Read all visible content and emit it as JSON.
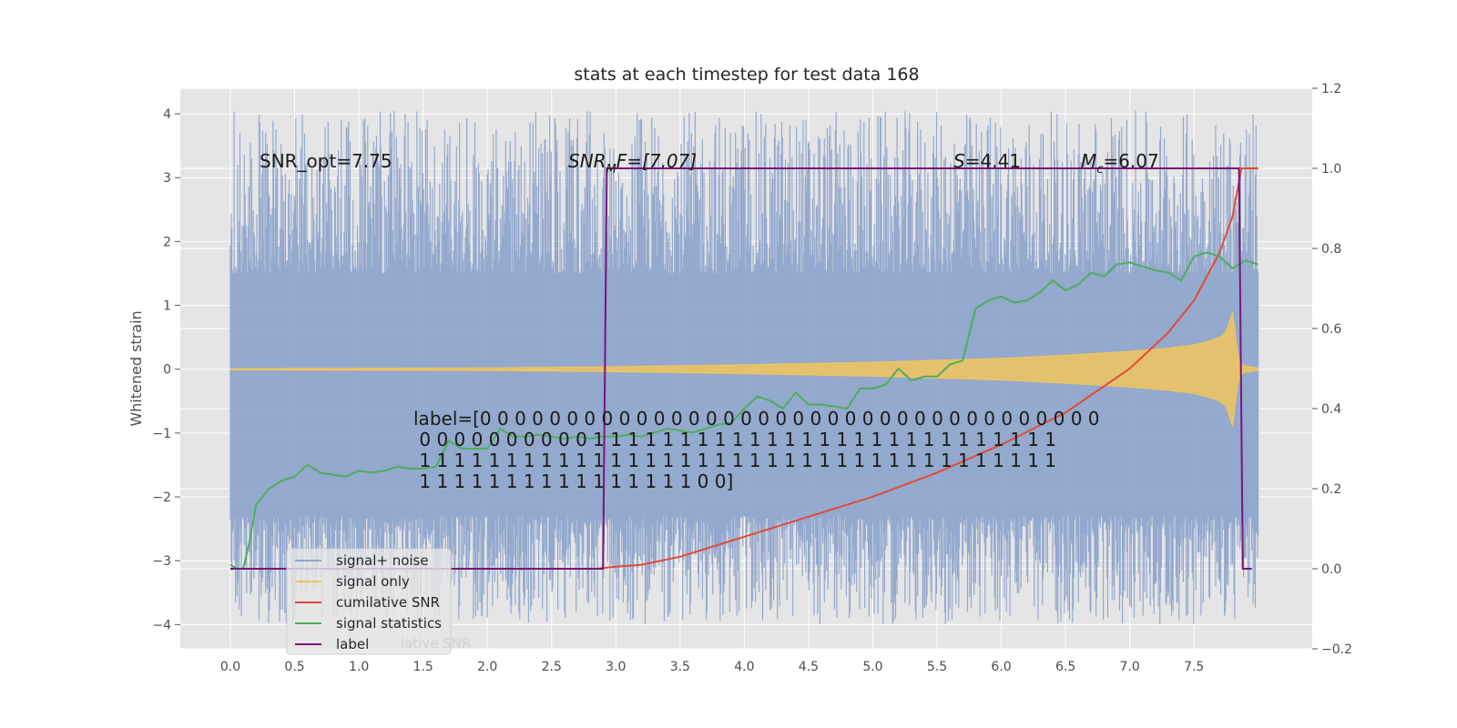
{
  "chart_data": {
    "type": "line",
    "title": "stats at each timestep for test data 168",
    "xlabel": "",
    "ylabel": "Whitened strain",
    "xlim": [
      -0.39,
      8.42
    ],
    "ylim": [
      -4.38,
      4.4
    ],
    "ylim_right": [
      -0.2,
      1.2
    ],
    "x_ticks": [
      "0.0",
      "0.5",
      "1.0",
      "1.5",
      "2.0",
      "2.5",
      "3.0",
      "3.5",
      "4.0",
      "4.5",
      "5.0",
      "5.5",
      "6.0",
      "6.5",
      "7.0",
      "7.5"
    ],
    "y_ticks": [
      "4",
      "3",
      "2",
      "1",
      "0",
      "−1",
      "−2",
      "−3",
      "−4"
    ],
    "y_ticks_right": [
      "1.2",
      "1.0",
      "0.8",
      "0.6",
      "0.4",
      "0.2",
      "0.0",
      "−0.2"
    ],
    "grid": true,
    "legend_position": "lower-left",
    "annotations": {
      "snr_opt": "SNR_opt=7.75",
      "snr_mf_main": "SNR",
      "snr_mf_sub": "M",
      "snr_mf_rest": "F=[7.07]",
      "s_main": "S",
      "s_rest": "=4.41",
      "mc_main": "M",
      "mc_sub": "c",
      "mc_rest": "=6.07",
      "label_lines": [
        "label=[0 0 0 0 0 0 0 0 0 0 0 0 0 0 0 0 0 0 0 0 0 0 0 0 0 0 0 0 0 0 0 0 0 0 0 0",
        " 0 0 0 0 0 0 0 0 0 0 1 1 1 1 1 1 1 1 1 1 1 1 1 1 1 1 1 1 1 1 1 1 1 1 1 1 1",
        " 1 1 1 1 1 1 1 1 1 1 1 1 1 1 1 1 1 1 1 1 1 1 1 1 1 1 1 1 1 1 1 1 1 1 1 1 1",
        " 1 1 1 1 1 1 1 1 1 1 1 1 1 1 1 1 0 0]"
      ],
      "legend_ghost": "lative SNR"
    },
    "noise_band": {
      "min_lo": -2.3,
      "min_hi": 1.5,
      "max_lo": -4.0,
      "max_hi": 4.05,
      "seed": 168
    },
    "series": [
      {
        "name": "signal+ noise",
        "color": "#8fa5cc",
        "axis": "left",
        "kind": "noise"
      },
      {
        "name": "signal only",
        "color": "#f2c55c",
        "axis": "left",
        "kind": "chirp",
        "amplitude": {
          "t": [
            0.0,
            2.0,
            3.0,
            4.0,
            5.0,
            5.5,
            6.0,
            6.5,
            7.0,
            7.3,
            7.5,
            7.6,
            7.7,
            7.75,
            7.8,
            7.85,
            7.9,
            8.0
          ],
          "a": [
            0.01,
            0.02,
            0.04,
            0.07,
            0.11,
            0.14,
            0.17,
            0.22,
            0.28,
            0.33,
            0.38,
            0.43,
            0.5,
            0.58,
            0.9,
            0.1,
            0.05,
            0.02
          ]
        }
      },
      {
        "name": "cumilative SNR",
        "color": "#e24a33",
        "axis": "right",
        "x": [
          0.0,
          1.0,
          2.0,
          2.5,
          2.85,
          3.0,
          3.2,
          3.5,
          4.0,
          4.5,
          5.0,
          5.5,
          6.0,
          6.5,
          7.0,
          7.3,
          7.5,
          7.7,
          7.8,
          7.87,
          8.0
        ],
        "y": [
          0.0,
          0.0,
          0.0,
          0.0,
          0.0,
          0.005,
          0.01,
          0.03,
          0.08,
          0.13,
          0.18,
          0.24,
          0.31,
          0.39,
          0.5,
          0.59,
          0.67,
          0.79,
          0.88,
          1.0,
          1.0
        ]
      },
      {
        "name": "signal statistics",
        "color": "#4daf5b",
        "axis": "right",
        "x": [
          0.0,
          0.05,
          0.1,
          0.15,
          0.2,
          0.3,
          0.4,
          0.5,
          0.6,
          0.7,
          0.8,
          0.9,
          1.0,
          1.1,
          1.2,
          1.3,
          1.4,
          1.5,
          1.6,
          1.7,
          1.8,
          1.9,
          2.0,
          2.1,
          2.2,
          2.3,
          2.4,
          2.5,
          2.6,
          2.7,
          2.8,
          2.9,
          3.0,
          3.1,
          3.2,
          3.3,
          3.4,
          3.5,
          3.6,
          3.7,
          3.8,
          3.9,
          4.0,
          4.1,
          4.2,
          4.3,
          4.4,
          4.5,
          4.6,
          4.7,
          4.8,
          4.9,
          5.0,
          5.1,
          5.2,
          5.3,
          5.4,
          5.5,
          5.6,
          5.7,
          5.8,
          5.9,
          6.0,
          6.1,
          6.2,
          6.3,
          6.4,
          6.5,
          6.6,
          6.7,
          6.8,
          6.9,
          7.0,
          7.1,
          7.2,
          7.3,
          7.4,
          7.5,
          7.6,
          7.7,
          7.8,
          7.9,
          8.0
        ],
        "y": [
          0.01,
          0.0,
          0.0,
          0.07,
          0.16,
          0.2,
          0.22,
          0.23,
          0.26,
          0.24,
          0.235,
          0.23,
          0.245,
          0.24,
          0.245,
          0.255,
          0.25,
          0.25,
          0.255,
          0.32,
          0.3,
          0.3,
          0.3,
          0.35,
          0.33,
          0.33,
          0.335,
          0.33,
          0.325,
          0.33,
          0.325,
          0.33,
          0.33,
          0.335,
          0.33,
          0.34,
          0.35,
          0.345,
          0.34,
          0.35,
          0.36,
          0.365,
          0.4,
          0.43,
          0.42,
          0.4,
          0.44,
          0.41,
          0.41,
          0.405,
          0.4,
          0.45,
          0.45,
          0.46,
          0.5,
          0.47,
          0.48,
          0.48,
          0.51,
          0.52,
          0.65,
          0.67,
          0.68,
          0.665,
          0.67,
          0.69,
          0.72,
          0.695,
          0.71,
          0.74,
          0.73,
          0.76,
          0.765,
          0.755,
          0.745,
          0.74,
          0.72,
          0.78,
          0.79,
          0.78,
          0.75,
          0.77,
          0.76
        ]
      },
      {
        "name": "label",
        "color": "#7b1579",
        "axis": "right",
        "x": [
          0.0,
          2.9,
          2.93,
          7.85,
          7.88,
          7.95
        ],
        "y": [
          0.0,
          0.0,
          1.0,
          1.0,
          0.0,
          0.0
        ]
      }
    ]
  }
}
